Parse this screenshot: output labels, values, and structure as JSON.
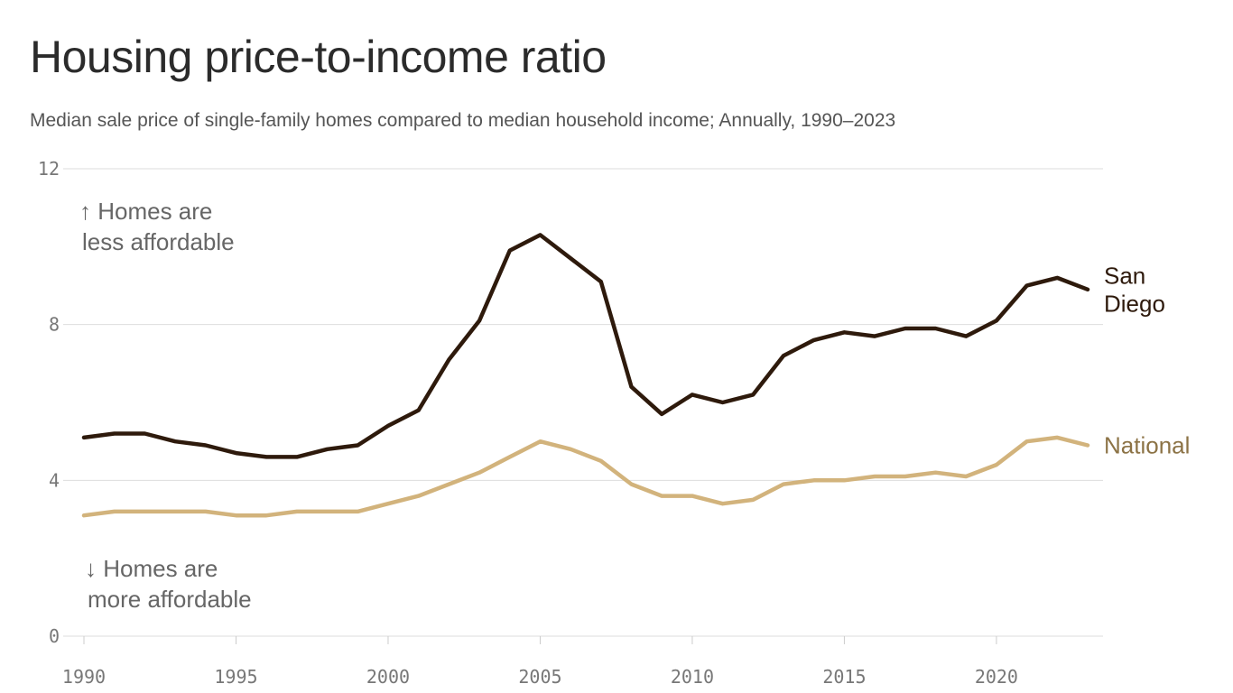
{
  "title": "Housing price-to-income ratio",
  "subtitle": "Median sale price of single-family homes compared to median household income; Annually, 1990–2023",
  "chart_data": {
    "type": "line",
    "x": [
      1990,
      1991,
      1992,
      1993,
      1994,
      1995,
      1996,
      1997,
      1998,
      1999,
      2000,
      2001,
      2002,
      2003,
      2004,
      2005,
      2006,
      2007,
      2008,
      2009,
      2010,
      2011,
      2012,
      2013,
      2014,
      2015,
      2016,
      2017,
      2018,
      2019,
      2020,
      2021,
      2022,
      2023
    ],
    "series": [
      {
        "name": "San Diego",
        "label_lines": [
          "San",
          "Diego"
        ],
        "color": "#2e1a0c",
        "values": [
          5.1,
          5.2,
          5.2,
          5.0,
          4.9,
          4.7,
          4.6,
          4.6,
          4.8,
          4.9,
          5.4,
          5.8,
          7.1,
          8.1,
          9.9,
          10.3,
          9.7,
          9.1,
          6.4,
          5.7,
          6.2,
          6.0,
          6.2,
          7.2,
          7.6,
          7.8,
          7.7,
          7.9,
          7.9,
          7.7,
          8.1,
          9.0,
          9.2,
          8.9
        ]
      },
      {
        "name": "National",
        "label_lines": [
          "National"
        ],
        "color": "#d2b37c",
        "label_color": "#8c7346",
        "values": [
          3.1,
          3.2,
          3.2,
          3.2,
          3.2,
          3.1,
          3.1,
          3.2,
          3.2,
          3.2,
          3.4,
          3.6,
          3.9,
          4.2,
          4.6,
          5.0,
          4.8,
          4.5,
          3.9,
          3.6,
          3.6,
          3.4,
          3.5,
          3.9,
          4.0,
          4.0,
          4.1,
          4.1,
          4.2,
          4.1,
          4.4,
          5.0,
          5.1,
          4.9
        ]
      }
    ],
    "xticks": [
      "1990",
      "1995",
      "2000",
      "2005",
      "2010",
      "2015",
      "2020"
    ],
    "yticks": [
      "0",
      "4",
      "8",
      "12"
    ],
    "ylim": [
      0,
      12
    ],
    "xlim": [
      1990,
      2023
    ],
    "grid": true,
    "annotations": {
      "up": [
        "↑ Homes are",
        "less affordable"
      ],
      "down": [
        "↓ Homes are",
        "more affordable"
      ]
    }
  }
}
